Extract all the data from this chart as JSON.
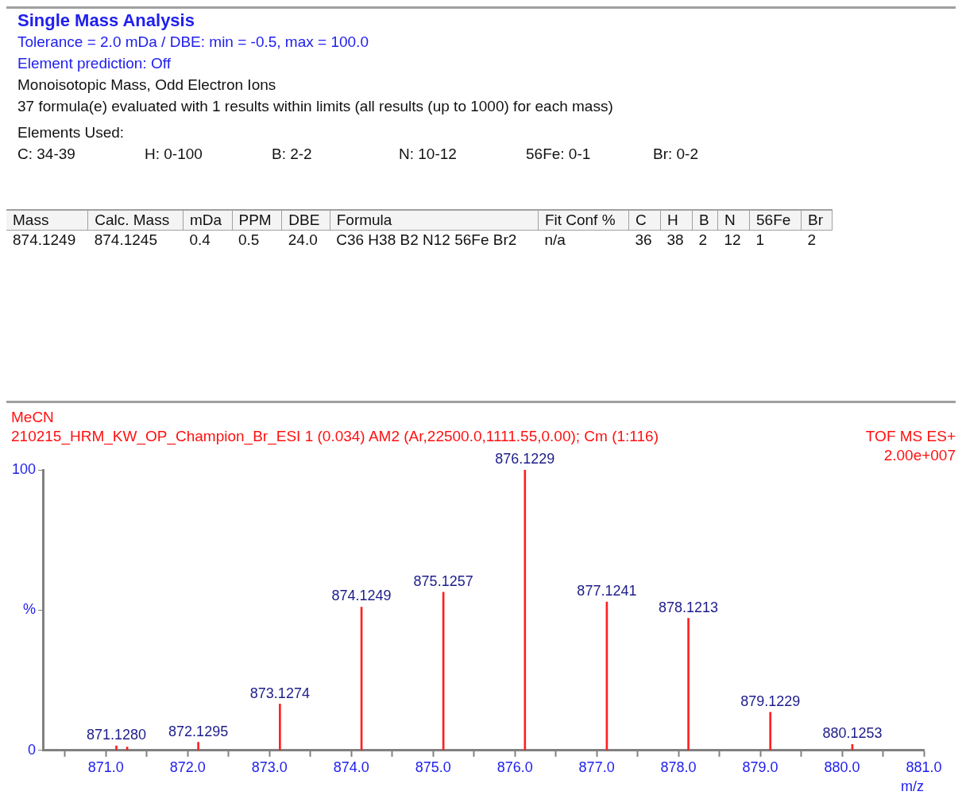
{
  "chart_data": {
    "type": "bar",
    "title": "Single Mass Analysis",
    "xlabel": "m/z",
    "annotations": [
      "Tolerance = 2.0 mDa   /   DBE: min = -0.5, max = 100.0",
      "Element prediction: Off",
      "Monoisotopic Mass, Odd Electron Ions",
      "37 formula(e) evaluated with 1 results within limits (all results (up to 1000) for each mass)",
      "Elements Used:",
      "C: 34-39\tH: 0-100\tB: 2-2\tN: 10-12\t56Fe: 0-1\tBr: 0-2",
      "Mass\tCalc. Mass\tmDa\tPPM\tDBE\tFormula\tFit Conf %\tC\tH\tB\tN\t56Fe\tBr",
      "874.1249\t874.1245\t0.4\t0.5\t24.0\tC36  H38  B2  N12  56Fe  Br2\tn/a\t36\t38\t2\t12\t1\t2",
      "MeCN",
      "210215_HRM_KW_OP_Champion_Br_ESI 1 (0.034) AM2 (Ar,22500.0,1111.55,0.00); Cm (1:116)",
      "TOF MS ES+",
      "2.00e+007",
      {
        "text": "871.1280",
        "x": 871.128,
        "y": 1.6
      },
      {
        "text": "872.1295",
        "x": 872.1295,
        "y": 2.9
      },
      {
        "text": "873.1274",
        "x": 873.1274,
        "y": 16.5
      },
      {
        "text": "874.1249",
        "x": 874.1249,
        "y": 51.1
      },
      {
        "text": "875.1257",
        "x": 875.1257,
        "y": 56.4
      },
      {
        "text": "876.1229",
        "x": 876.1229,
        "y": 100
      },
      {
        "text": "877.1241",
        "x": 877.1241,
        "y": 52.9
      },
      {
        "text": "878.1213",
        "x": 878.1213,
        "y": 47.1
      },
      {
        "text": "879.1229",
        "x": 879.1229,
        "y": 13.6
      },
      {
        "text": "880.1253",
        "x": 880.1253,
        "y": 2.1
      }
    ],
    "x": [
      871.128,
      871.26,
      872.1295,
      873.1274,
      874.1249,
      875.1257,
      876.1229,
      877.1241,
      878.1213,
      879.1229,
      880.1253
    ],
    "values": [
      1.6,
      1.2,
      2.9,
      16.5,
      51.1,
      56.4,
      100,
      52.9,
      47.1,
      13.6,
      2.1
    ],
    "color": "#ff2020",
    "xlim": [
      870.23,
      881.0
    ],
    "xticks": [
      {
        "value": 870.5,
        "label": null
      },
      {
        "value": 871,
        "label": "871.0"
      },
      {
        "value": 871.5,
        "label": null
      },
      {
        "value": 872,
        "label": "872.0"
      },
      {
        "value": 872.5,
        "label": null
      },
      {
        "value": 873,
        "label": "873.0"
      },
      {
        "value": 873.5,
        "label": null
      },
      {
        "value": 874,
        "label": "874.0"
      },
      {
        "value": 874.5,
        "label": null
      },
      {
        "value": 875,
        "label": "875.0"
      },
      {
        "value": 875.5,
        "label": null
      },
      {
        "value": 876,
        "label": "876.0"
      },
      {
        "value": 876.5,
        "label": null
      },
      {
        "value": 877,
        "label": "877.0"
      },
      {
        "value": 877.5,
        "label": null
      },
      {
        "value": 878,
        "label": "878.0"
      },
      {
        "value": 878.5,
        "label": null
      },
      {
        "value": 879,
        "label": "879.0"
      },
      {
        "value": 879.5,
        "label": null
      },
      {
        "value": 880,
        "label": "880.0"
      },
      {
        "value": 880.5,
        "label": null
      },
      {
        "value": 881,
        "label": "881.0"
      }
    ],
    "ylim": [
      0,
      100
    ],
    "yticks": [
      0,
      {
        "value": 50,
        "label": "%"
      },
      100
    ],
    "grid": false,
    "legend": false
  }
}
